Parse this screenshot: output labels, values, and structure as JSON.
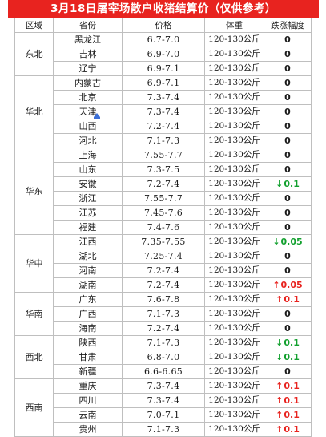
{
  "title": "3月18日屠宰场散户收猪结算价（仅供参考）",
  "headers": {
    "region": "区域",
    "province": "省份",
    "price": "价格",
    "weight": "体重",
    "change": "跌涨幅度"
  },
  "colors": {
    "title_bg": "#e8231f",
    "up": "#e8231f",
    "down": "#12a02e"
  },
  "regions": [
    {
      "name": "东北",
      "rows": [
        {
          "province": "黑龙江",
          "price": "6.7-7.0",
          "weight": "120-130公斤",
          "change": "0",
          "dir": ""
        },
        {
          "province": "吉林",
          "price": "6.9-7.0",
          "weight": "120-130公斤",
          "change": "0",
          "dir": ""
        },
        {
          "province": "辽宁",
          "price": "6.9-7.1",
          "weight": "120-130公斤",
          "change": "0",
          "dir": ""
        }
      ]
    },
    {
      "name": "华北",
      "rows": [
        {
          "province": "内蒙古",
          "price": "6.9-7.1",
          "weight": "120-130公斤",
          "change": "0",
          "dir": ""
        },
        {
          "province": "北京",
          "price": "7.3-7.4",
          "weight": "120-130公斤",
          "change": "0",
          "dir": ""
        },
        {
          "province": "天津",
          "price": "7.3-7.4",
          "weight": "120-130公斤",
          "change": "0",
          "dir": ""
        },
        {
          "province": "山西",
          "price": "7.2-7.4",
          "weight": "120-130公斤",
          "change": "0",
          "dir": ""
        },
        {
          "province": "河北",
          "price": "7.1-7.3",
          "weight": "120-130公斤",
          "change": "0",
          "dir": ""
        }
      ]
    },
    {
      "name": "华东",
      "rows": [
        {
          "province": "上海",
          "price": "7.55-7.7",
          "weight": "120-130公斤",
          "change": "0",
          "dir": ""
        },
        {
          "province": "山东",
          "price": "7.3-7.5",
          "weight": "120-130公斤",
          "change": "0",
          "dir": ""
        },
        {
          "province": "安徽",
          "price": "7.2-7.4",
          "weight": "120-130公斤",
          "change": "0.1",
          "dir": "down"
        },
        {
          "province": "浙江",
          "price": "7.55-7.7",
          "weight": "120-130公斤",
          "change": "0",
          "dir": ""
        },
        {
          "province": "江苏",
          "price": "7.45-7.6",
          "weight": "120-130公斤",
          "change": "0",
          "dir": ""
        },
        {
          "province": "福建",
          "price": "7.4-7.6",
          "weight": "120-130公斤",
          "change": "0",
          "dir": ""
        }
      ]
    },
    {
      "name": "华中",
      "rows": [
        {
          "province": "江西",
          "price": "7.35-7.55",
          "weight": "120-130公斤",
          "change": "0.05",
          "dir": "down"
        },
        {
          "province": "湖北",
          "price": "7.25-7.4",
          "weight": "120-130公斤",
          "change": "0",
          "dir": ""
        },
        {
          "province": "河南",
          "price": "7.2-7.4",
          "weight": "120-130公斤",
          "change": "0",
          "dir": ""
        },
        {
          "province": "湖南",
          "price": "7.2-7.4",
          "weight": "120-130公斤",
          "change": "0.05",
          "dir": "up"
        }
      ]
    },
    {
      "name": "华南",
      "rows": [
        {
          "province": "广东",
          "price": "7.6-7.8",
          "weight": "120-130公斤",
          "change": "0.1",
          "dir": "up"
        },
        {
          "province": "广西",
          "price": "7.1-7.3",
          "weight": "120-130公斤",
          "change": "0",
          "dir": ""
        },
        {
          "province": "海南",
          "price": "7.2-7.4",
          "weight": "120-130公斤",
          "change": "0",
          "dir": ""
        }
      ]
    },
    {
      "name": "西北",
      "rows": [
        {
          "province": "陕西",
          "price": "7.1-7.3",
          "weight": "120-130公斤",
          "change": "0.1",
          "dir": "down"
        },
        {
          "province": "甘肃",
          "price": "6.8-7.0",
          "weight": "120-130公斤",
          "change": "0.1",
          "dir": "down"
        },
        {
          "province": "新疆",
          "price": "6.6-6.65",
          "weight": "120-130公斤",
          "change": "0",
          "dir": ""
        }
      ]
    },
    {
      "name": "西南",
      "rows": [
        {
          "province": "重庆",
          "price": "7.3-7.4",
          "weight": "120-130公斤",
          "change": "0.1",
          "dir": "up"
        },
        {
          "province": "四川",
          "price": "7.3-7.4",
          "weight": "120-130公斤",
          "change": "0.1",
          "dir": "up"
        },
        {
          "province": "云南",
          "price": "7.0-7.1",
          "weight": "120-130公斤",
          "change": "0.1",
          "dir": "up"
        },
        {
          "province": "贵州",
          "price": "7.1-7.3",
          "weight": "120-130公斤",
          "change": "0.1",
          "dir": "up"
        }
      ]
    }
  ]
}
